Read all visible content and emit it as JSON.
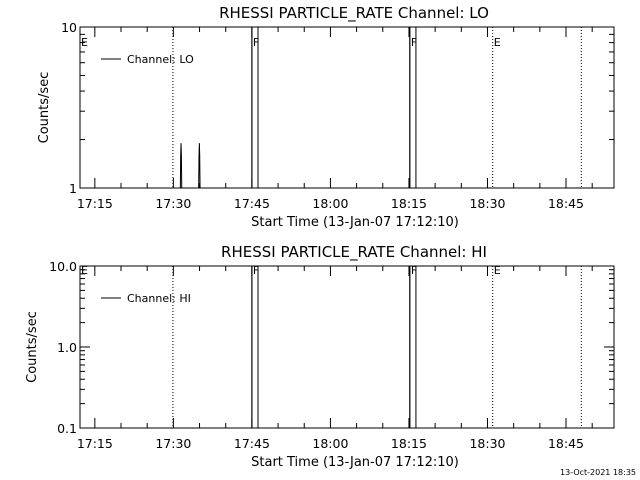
{
  "chart_data": [
    {
      "type": "line",
      "title": "RHESSI PARTICLE_RATE Channel: LO",
      "xlabel": "Start Time (13-Jan-07 17:12:10)",
      "ylabel": "Counts/sec",
      "yscale": "log",
      "ylim": [
        1,
        10
      ],
      "ytick_labels": [
        "1",
        "10"
      ],
      "xlim": [
        "17:12:10",
        "18:54:10"
      ],
      "xtick_labels": [
        "17:15",
        "17:30",
        "17:45",
        "18:00",
        "18:15",
        "18:30",
        "18:45"
      ],
      "legend": {
        "entries": [
          "Channel: LO"
        ],
        "placement": "top-left"
      },
      "markers": [
        {
          "label": "E",
          "time": "17:12:10",
          "style": "none"
        },
        {
          "label": "",
          "time": "17:29:55",
          "style": "dotted"
        },
        {
          "label": "F",
          "time": "17:45:00",
          "style": "solid"
        },
        {
          "label": "F",
          "time": "18:15:10",
          "style": "solid"
        },
        {
          "label": "E",
          "time": "18:31:00",
          "style": "dotted"
        },
        {
          "label": "",
          "time": "18:47:55",
          "style": "dotted"
        }
      ],
      "series": [
        {
          "name": "Channel: LO",
          "points": [
            [
              "17:31:20",
              1
            ],
            [
              "17:31:24",
              1.6
            ],
            [
              "17:31:28",
              1.9
            ],
            [
              "17:31:32",
              1.6
            ],
            [
              "17:31:36",
              1
            ],
            [
              "17:34:50",
              1
            ],
            [
              "17:34:54",
              1.6
            ],
            [
              "17:34:58",
              1.9
            ],
            [
              "17:35:02",
              1.6
            ],
            [
              "17:35:06",
              1
            ],
            [
              "17:45:00",
              10
            ],
            [
              "17:46:10",
              10
            ],
            [
              "18:15:10",
              10
            ],
            [
              "18:16:20",
              10
            ]
          ]
        }
      ]
    },
    {
      "type": "line",
      "title": "RHESSI PARTICLE_RATE Channel: HI",
      "xlabel": "Start Time (13-Jan-07 17:12:10)",
      "ylabel": "Counts/sec",
      "yscale": "log",
      "ylim": [
        0.1,
        10
      ],
      "ytick_labels": [
        "0.1",
        "1.0",
        "10.0"
      ],
      "xlim": [
        "17:12:10",
        "18:54:10"
      ],
      "xtick_labels": [
        "17:15",
        "17:30",
        "17:45",
        "18:00",
        "18:15",
        "18:30",
        "18:45"
      ],
      "legend": {
        "entries": [
          "Channel: HI"
        ],
        "placement": "top-left"
      },
      "markers": [
        {
          "label": "E",
          "time": "17:12:10",
          "style": "none"
        },
        {
          "label": "",
          "time": "17:29:55",
          "style": "dotted"
        },
        {
          "label": "F",
          "time": "17:45:00",
          "style": "solid"
        },
        {
          "label": "F",
          "time": "18:15:10",
          "style": "solid"
        },
        {
          "label": "E",
          "time": "18:31:00",
          "style": "dotted"
        },
        {
          "label": "",
          "time": "18:47:55",
          "style": "dotted"
        }
      ],
      "series": [
        {
          "name": "Channel: HI",
          "points": [
            [
              "17:45:00",
              10
            ],
            [
              "17:46:10",
              10
            ],
            [
              "18:15:10",
              10
            ],
            [
              "18:16:20",
              10
            ]
          ]
        }
      ]
    }
  ],
  "timestamp": "13-Oct-2021 18:35",
  "colors": {
    "background": "#ffffff",
    "ink": "#000000"
  }
}
